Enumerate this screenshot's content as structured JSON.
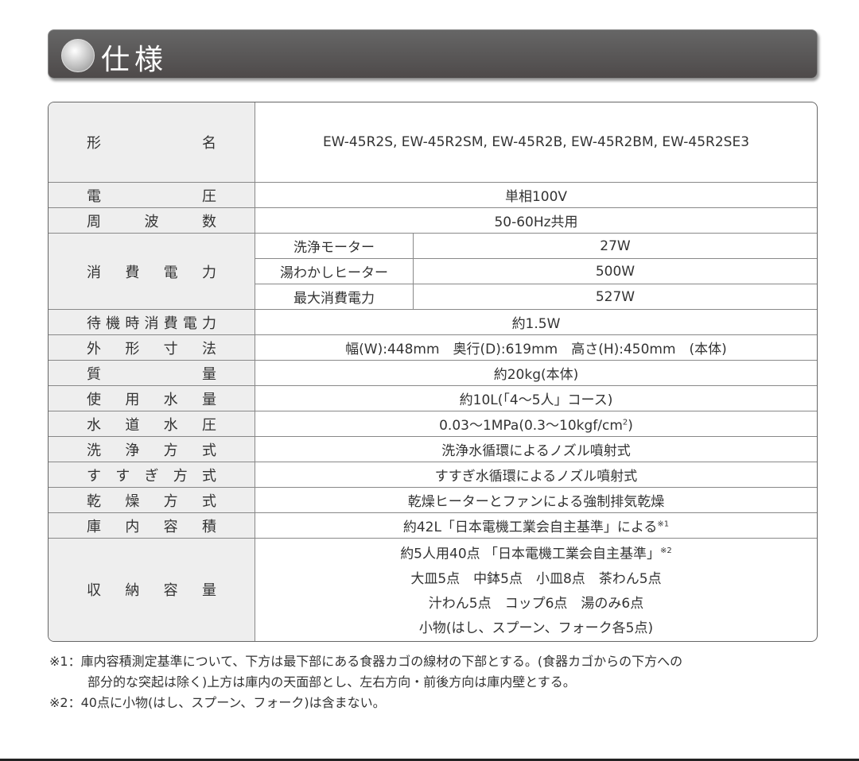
{
  "header": {
    "title": "仕様"
  },
  "rows": {
    "model": {
      "label": "形名",
      "value": "EW-45R2S, EW-45R2SM, EW-45R2B, EW-45R2BM, EW-45R2SE3"
    },
    "voltage": {
      "label": "電圧",
      "value": "単相100V"
    },
    "frequency": {
      "label": "周波数",
      "value": "50-60Hz共用"
    },
    "power": {
      "label": "消費電力",
      "items": [
        {
          "name": "洗浄モーター",
          "value": "27W"
        },
        {
          "name": "湯わかしヒーター",
          "value": "500W"
        },
        {
          "name": "最大消費電力",
          "value": "527W"
        }
      ]
    },
    "standby": {
      "label": "待機時消費電力",
      "value": "約1.5W"
    },
    "dimensions": {
      "label": "外形寸法",
      "value": "幅(W):448mm　奥行(D):619mm　高さ(H):450mm　(本体)"
    },
    "mass": {
      "label": "質量",
      "value": "約20kg(本体)"
    },
    "water_use": {
      "label": "使用水量",
      "value": "約10L(「4～5人」コース)"
    },
    "water_pressure": {
      "label": "水道水圧",
      "value": "0.03～1MPa(0.3～10kgf/cm",
      "sup": "2",
      "tail": ")"
    },
    "wash": {
      "label": "洗浄方式",
      "value": "洗浄水循環によるノズル噴射式"
    },
    "rinse": {
      "label": "すすぎ方式",
      "value": "すすぎ水循環によるノズル噴射式"
    },
    "dry": {
      "label": "乾燥方式",
      "value": "乾燥ヒーターとファンによる強制排気乾燥"
    },
    "capacity": {
      "label": "庫内容積",
      "value": "約42L「日本電機工業会自主基準」による",
      "sup": "※1"
    },
    "storage": {
      "label": "収納容量",
      "line1": "約5人用40点 「日本電機工業会自主基準」",
      "sup": "※2",
      "line2": "大皿5点　中鉢5点　小皿8点　茶わん5点",
      "line3": "汁わん5点　コップ6点　湯のみ6点",
      "line4": "小物(はし、スプーン、フォーク各5点)"
    }
  },
  "notes": {
    "n1a": "※1：庫内容積測定基準について、下方は最下部にある食器カゴの線材の下部とする。(食器カゴからの下方への",
    "n1b": "部分的な突起は除く)上方は庫内の天面部とし、左右方向・前後方向は庫内壁とする。",
    "n2": "※2：40点に小物(はし、スプーン、フォーク)は含まない。"
  }
}
